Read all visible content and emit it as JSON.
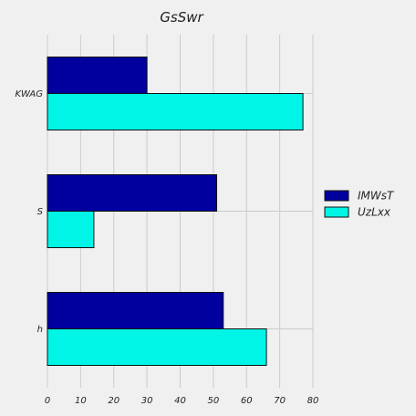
{
  "chart_data": {
    "type": "bar",
    "orientation": "horizontal",
    "title": "GsSwr",
    "xlabel": "",
    "ylabel": "",
    "categories": [
      "KWAG",
      "S",
      "h"
    ],
    "series": [
      {
        "name": "IMWsT",
        "values": [
          30,
          51,
          53
        ],
        "color": "#00009f"
      },
      {
        "name": "UzLxx",
        "values": [
          77,
          14,
          66
        ],
        "color": "#00f5e6"
      }
    ],
    "xlim": [
      0,
      80
    ],
    "xticks": [
      0,
      10,
      20,
      30,
      40,
      50,
      60,
      70,
      80
    ],
    "grid": true,
    "legend": "right"
  }
}
